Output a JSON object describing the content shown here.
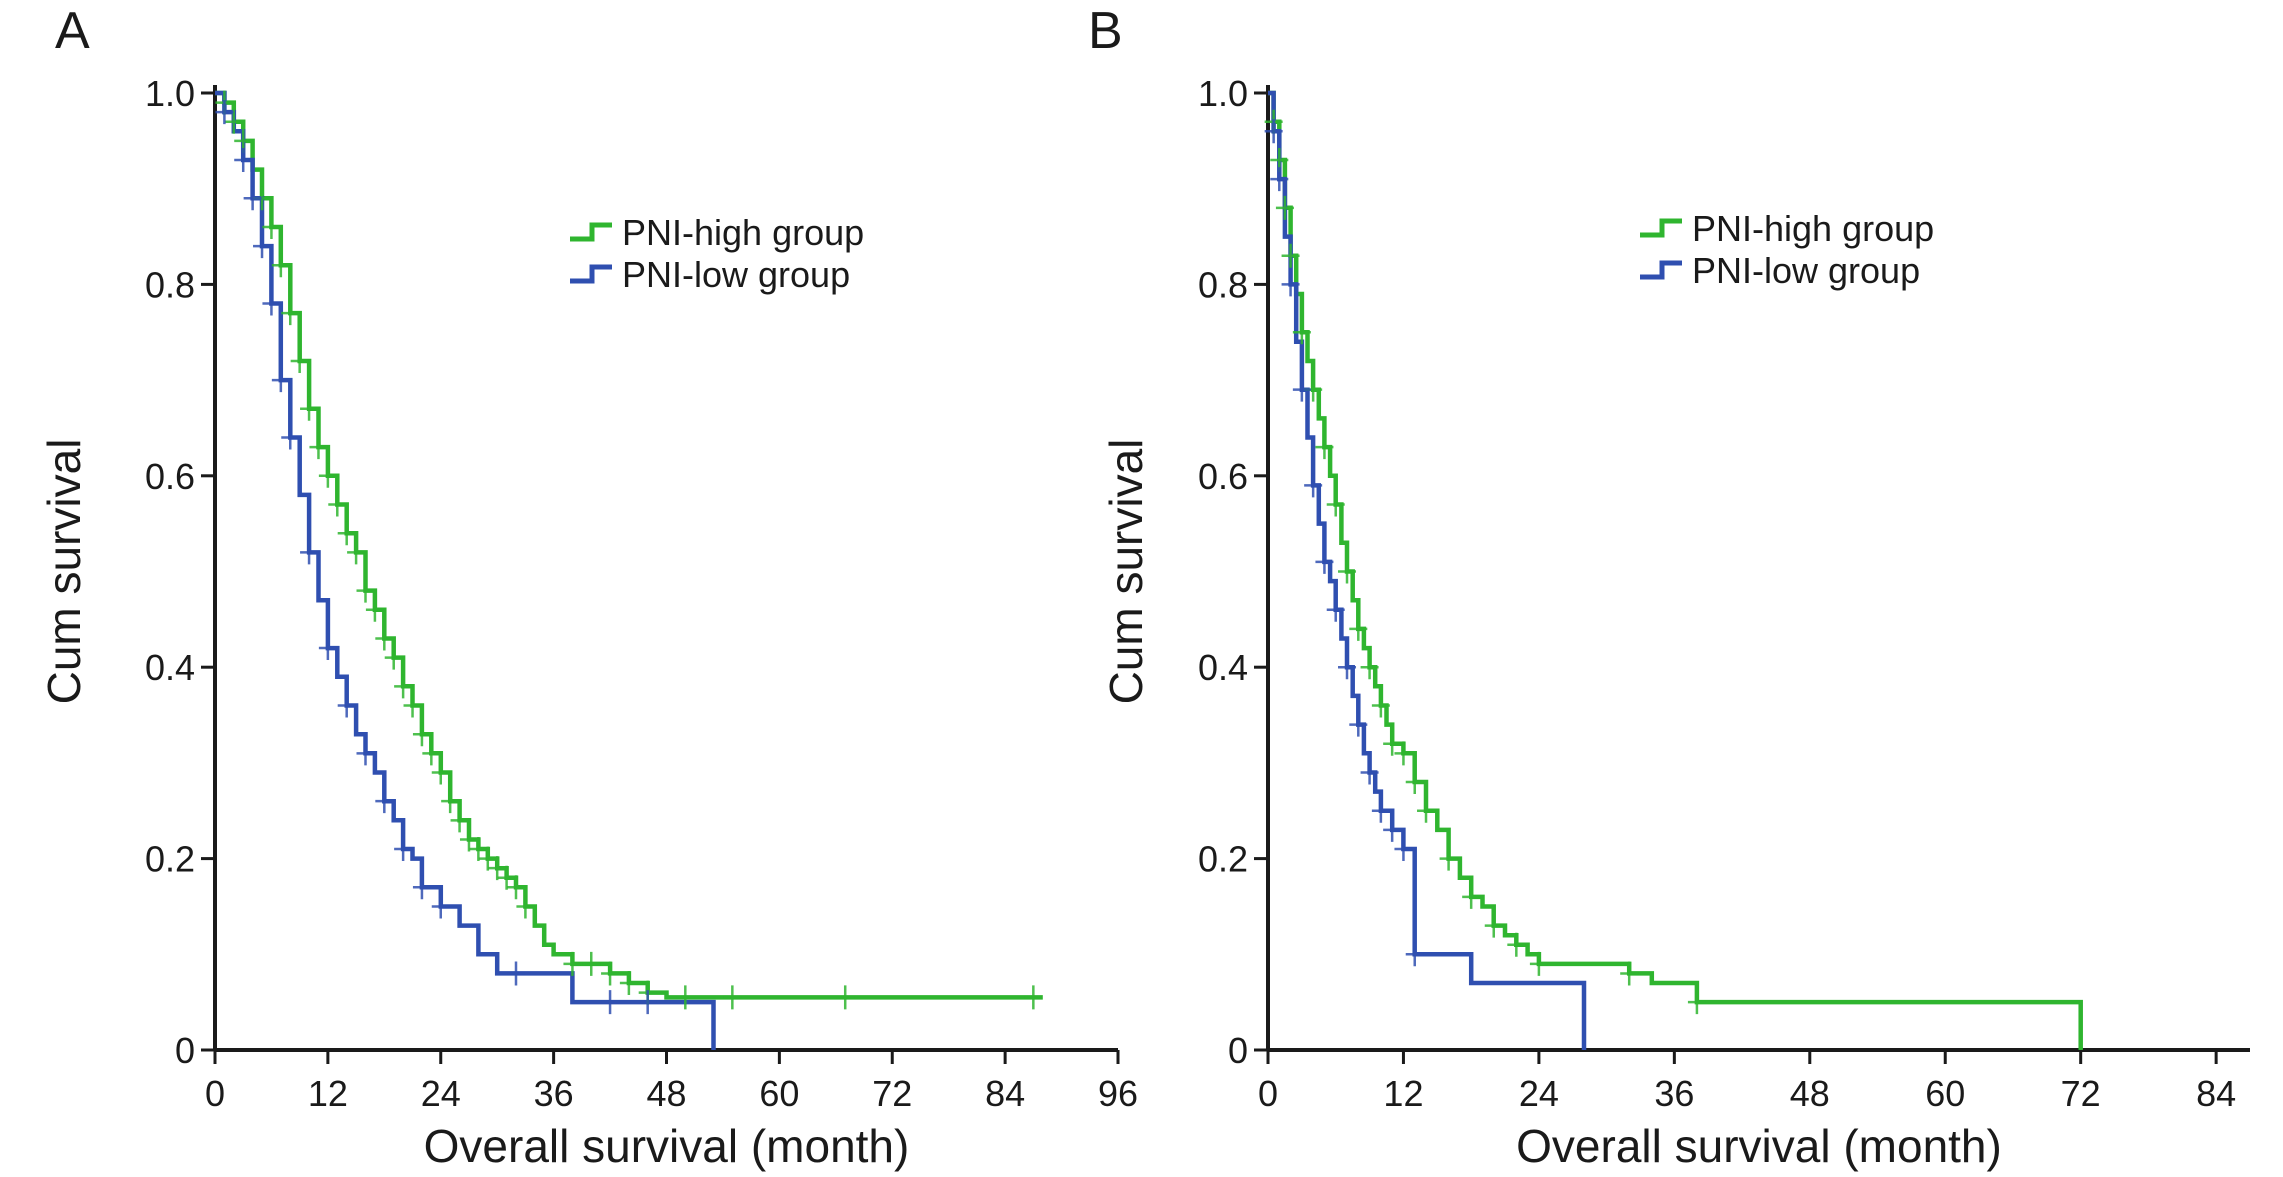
{
  "figure": {
    "colors": {
      "PNI-high group": "#2fb52f",
      "PNI-low group": "#2f4fb0",
      "axis": "#1a1a1a"
    }
  },
  "chart_data": [
    {
      "panel": "A",
      "type": "line",
      "step": true,
      "xlabel": "Overall survival (month)",
      "ylabel": "Cum survival",
      "xlim": [
        0,
        96
      ],
      "ylim": [
        0,
        1.0
      ],
      "xticks": [
        0,
        12,
        24,
        36,
        48,
        60,
        72,
        84,
        96
      ],
      "yticks": [
        0,
        0.2,
        0.4,
        0.6,
        0.8,
        1.0
      ],
      "ytick_labels": [
        "0",
        "0.2",
        "0.4",
        "0.6",
        "0.8",
        "1.0"
      ],
      "grid": false,
      "legend_position": "top-right",
      "series": [
        {
          "name": "PNI-high group",
          "x": [
            0,
            1,
            2,
            3,
            4,
            5,
            6,
            7,
            8,
            9,
            10,
            11,
            12,
            13,
            14,
            15,
            16,
            17,
            18,
            19,
            20,
            21,
            22,
            23,
            24,
            25,
            26,
            27,
            28,
            29,
            30,
            31,
            32,
            33,
            34,
            35,
            36,
            38,
            40,
            42,
            44,
            46,
            48,
            88
          ],
          "y": [
            1.0,
            0.99,
            0.97,
            0.95,
            0.92,
            0.89,
            0.86,
            0.82,
            0.77,
            0.72,
            0.67,
            0.63,
            0.6,
            0.57,
            0.54,
            0.52,
            0.48,
            0.46,
            0.43,
            0.41,
            0.38,
            0.36,
            0.33,
            0.31,
            0.29,
            0.26,
            0.24,
            0.22,
            0.21,
            0.2,
            0.19,
            0.18,
            0.17,
            0.15,
            0.13,
            0.11,
            0.1,
            0.09,
            0.09,
            0.08,
            0.07,
            0.06,
            0.055,
            0.055
          ]
        },
        {
          "name": "PNI-low group",
          "x": [
            0,
            1,
            2,
            3,
            4,
            5,
            6,
            7,
            8,
            9,
            10,
            11,
            12,
            13,
            14,
            15,
            16,
            17,
            18,
            19,
            20,
            21,
            22,
            24,
            26,
            28,
            30,
            32,
            34,
            38,
            40,
            53
          ],
          "y": [
            1.0,
            0.98,
            0.96,
            0.93,
            0.89,
            0.84,
            0.78,
            0.7,
            0.64,
            0.58,
            0.52,
            0.47,
            0.42,
            0.39,
            0.36,
            0.33,
            0.31,
            0.29,
            0.26,
            0.24,
            0.21,
            0.2,
            0.17,
            0.15,
            0.13,
            0.1,
            0.08,
            0.08,
            0.08,
            0.05,
            0.05,
            0.0
          ]
        }
      ],
      "censor_marks": [
        {
          "series": "PNI-high group",
          "x": [
            1,
            2,
            3,
            5,
            6,
            7,
            8,
            9,
            10,
            11,
            12,
            13,
            14,
            15,
            16,
            17,
            18,
            19,
            20,
            21,
            22,
            23,
            24,
            25,
            26,
            27,
            28,
            29,
            30,
            31,
            32,
            33,
            38,
            40,
            42,
            44,
            46,
            50,
            55,
            67,
            87
          ]
        },
        {
          "series": "PNI-low group",
          "x": [
            1,
            3,
            4,
            5,
            6,
            7,
            8,
            10,
            12,
            14,
            16,
            18,
            20,
            22,
            24,
            32,
            42,
            46
          ]
        }
      ]
    },
    {
      "panel": "B",
      "type": "line",
      "step": true,
      "xlabel": "Overall survival (month)",
      "ylabel": "Cum survival",
      "xlim": [
        0,
        87
      ],
      "ylim": [
        0,
        1.0
      ],
      "xticks": [
        0,
        12,
        24,
        36,
        48,
        60,
        72,
        84
      ],
      "yticks": [
        0,
        0.2,
        0.4,
        0.6,
        0.8,
        1.0
      ],
      "ytick_labels": [
        "0",
        "0.2",
        "0.4",
        "0.6",
        "0.8",
        "1.0"
      ],
      "grid": false,
      "legend_position": "top-right",
      "series": [
        {
          "name": "PNI-high group",
          "x": [
            0,
            0.5,
            1,
            1.5,
            2,
            2.5,
            3,
            3.5,
            4,
            4.5,
            5,
            5.5,
            6,
            6.5,
            7,
            7.5,
            8,
            8.5,
            9,
            9.5,
            10,
            10.5,
            11,
            12,
            13,
            14,
            15,
            16,
            17,
            18,
            19,
            20,
            21,
            22,
            23,
            24,
            26,
            28,
            30,
            32,
            34,
            36,
            38,
            40,
            72
          ],
          "y": [
            1.0,
            0.97,
            0.93,
            0.88,
            0.83,
            0.79,
            0.75,
            0.72,
            0.69,
            0.66,
            0.63,
            0.6,
            0.57,
            0.53,
            0.5,
            0.47,
            0.44,
            0.42,
            0.4,
            0.38,
            0.36,
            0.34,
            0.32,
            0.31,
            0.28,
            0.25,
            0.23,
            0.2,
            0.18,
            0.16,
            0.15,
            0.13,
            0.12,
            0.11,
            0.1,
            0.09,
            0.09,
            0.09,
            0.09,
            0.08,
            0.07,
            0.07,
            0.05,
            0.05,
            0.0
          ]
        },
        {
          "name": "PNI-low group",
          "x": [
            0,
            0.5,
            1,
            1.5,
            2,
            2.5,
            3,
            3.5,
            4,
            4.5,
            5,
            5.5,
            6,
            6.5,
            7,
            7.5,
            8,
            8.5,
            9,
            9.5,
            10,
            11,
            12,
            13,
            18,
            22,
            28
          ],
          "y": [
            1.0,
            0.96,
            0.91,
            0.85,
            0.8,
            0.74,
            0.69,
            0.64,
            0.59,
            0.55,
            0.51,
            0.49,
            0.46,
            0.43,
            0.4,
            0.37,
            0.34,
            0.31,
            0.29,
            0.27,
            0.25,
            0.23,
            0.21,
            0.1,
            0.07,
            0.07,
            0.0
          ]
        }
      ],
      "censor_marks": [
        {
          "series": "PNI-high group",
          "x": [
            0.5,
            1,
            1.5,
            2,
            3,
            4,
            5,
            6,
            7,
            8,
            9,
            10,
            11,
            12,
            13,
            14,
            16,
            18,
            20,
            22,
            24,
            32,
            38
          ]
        },
        {
          "series": "PNI-low group",
          "x": [
            0.5,
            1,
            2,
            3,
            4,
            5,
            6,
            7,
            8,
            9,
            10,
            11,
            12,
            13
          ]
        }
      ]
    }
  ]
}
